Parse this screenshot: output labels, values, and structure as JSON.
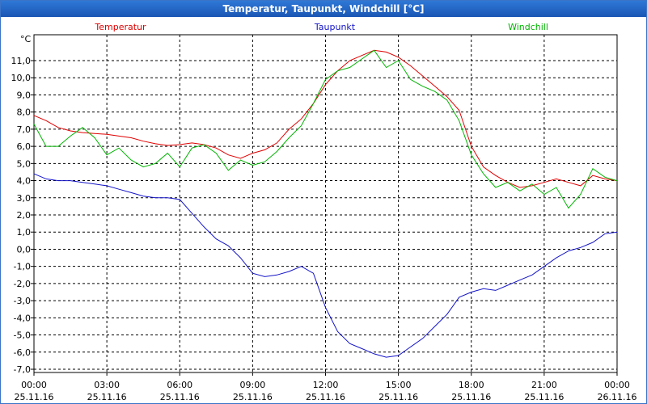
{
  "window": {
    "title": "Temperatur, Taupunkt, Windchill [°C]"
  },
  "chart_data": {
    "type": "line",
    "title": "Temperatur, Taupunkt, Windchill [°C]",
    "ylabel": "°C",
    "xlabel": "",
    "ylim": [
      -7,
      12
    ],
    "xlim": [
      0,
      24
    ],
    "grid": true,
    "y_ticks": [
      "11,0",
      "10,0",
      "9,0",
      "8,0",
      "7,0",
      "6,0",
      "5,0",
      "4,0",
      "3,0",
      "2,0",
      "1,0",
      "0,0",
      "-1,0",
      "-2,0",
      "-3,0",
      "-4,0",
      "-5,0",
      "-6,0",
      "-7,0"
    ],
    "y_tick_values": [
      11,
      10,
      9,
      8,
      7,
      6,
      5,
      4,
      3,
      2,
      1,
      0,
      -1,
      -2,
      -3,
      -4,
      -5,
      -6,
      -7
    ],
    "x_ticks": [
      {
        "time": "00:00",
        "date": "25.11.16",
        "hour": 0
      },
      {
        "time": "03:00",
        "date": "25.11.16",
        "hour": 3
      },
      {
        "time": "06:00",
        "date": "25.11.16",
        "hour": 6
      },
      {
        "time": "09:00",
        "date": "25.11.16",
        "hour": 9
      },
      {
        "time": "12:00",
        "date": "25.11.16",
        "hour": 12
      },
      {
        "time": "15:00",
        "date": "25.11.16",
        "hour": 15
      },
      {
        "time": "18:00",
        "date": "25.11.16",
        "hour": 18
      },
      {
        "time": "21:00",
        "date": "25.11.16",
        "hour": 21
      },
      {
        "time": "00:00",
        "date": "26.11.16",
        "hour": 24
      }
    ],
    "legend_placement": "top",
    "series": [
      {
        "name": "Temperatur",
        "color": "#e00000",
        "x": [
          0,
          0.5,
          1,
          1.5,
          2,
          2.5,
          3,
          3.5,
          4,
          4.5,
          5,
          5.5,
          6,
          6.5,
          7,
          7.5,
          8,
          8.5,
          9,
          9.5,
          10,
          10.5,
          11,
          11.5,
          12,
          12.5,
          13,
          13.5,
          14,
          14.5,
          15,
          15.5,
          16,
          16.5,
          17,
          17.5,
          18,
          18.5,
          19,
          19.5,
          20,
          20.5,
          21,
          21.5,
          22,
          22.5,
          23,
          23.5,
          24
        ],
        "values": [
          7.8,
          7.5,
          7.1,
          6.9,
          6.8,
          6.75,
          6.7,
          6.6,
          6.5,
          6.3,
          6.15,
          6.05,
          6.1,
          6.2,
          6.1,
          5.9,
          5.5,
          5.3,
          5.6,
          5.8,
          6.2,
          7.0,
          7.6,
          8.5,
          9.6,
          10.4,
          11.0,
          11.3,
          11.6,
          11.5,
          11.2,
          10.7,
          10.1,
          9.5,
          8.9,
          8.1,
          6.0,
          4.8,
          4.3,
          3.9,
          3.6,
          3.7,
          3.9,
          4.1,
          3.9,
          3.7,
          4.3,
          4.1,
          4.0
        ]
      },
      {
        "name": "Taupunkt",
        "color": "#1414c8",
        "x": [
          0,
          0.5,
          1,
          1.5,
          2,
          2.5,
          3,
          3.5,
          4,
          4.5,
          5,
          5.5,
          6,
          6.5,
          7,
          7.5,
          8,
          8.5,
          9,
          9.5,
          10,
          10.5,
          11,
          11.5,
          12,
          12.5,
          13,
          13.5,
          14,
          14.5,
          15,
          15.5,
          16,
          16.5,
          17,
          17.5,
          18,
          18.5,
          19,
          19.5,
          20,
          20.5,
          21,
          21.5,
          22,
          22.5,
          23,
          23.5,
          24
        ],
        "values": [
          4.4,
          4.1,
          4.0,
          4.0,
          3.9,
          3.8,
          3.7,
          3.5,
          3.3,
          3.1,
          3.0,
          3.0,
          2.9,
          2.1,
          1.3,
          0.6,
          0.2,
          -0.5,
          -1.4,
          -1.6,
          -1.5,
          -1.3,
          -1.0,
          -1.4,
          -3.4,
          -4.8,
          -5.5,
          -5.8,
          -6.1,
          -6.3,
          -6.2,
          -5.7,
          -5.2,
          -4.5,
          -3.8,
          -2.8,
          -2.5,
          -2.3,
          -2.4,
          -2.1,
          -1.8,
          -1.5,
          -1.0,
          -0.5,
          -0.1,
          0.1,
          0.4,
          0.9,
          1.0
        ]
      },
      {
        "name": "Windchill",
        "color": "#00b400",
        "x": [
          0,
          0.5,
          1,
          1.5,
          2,
          2.5,
          3,
          3.5,
          4,
          4.5,
          5,
          5.5,
          6,
          6.5,
          7,
          7.5,
          8,
          8.5,
          9,
          9.5,
          10,
          10.5,
          11,
          11.5,
          12,
          12.5,
          13,
          13.5,
          14,
          14.5,
          15,
          15.5,
          16,
          16.5,
          17,
          17.5,
          18,
          18.5,
          19,
          19.5,
          20,
          20.5,
          21,
          21.5,
          22,
          22.5,
          23,
          23.5,
          24
        ],
        "values": [
          7.3,
          6.0,
          6.0,
          6.6,
          7.1,
          6.5,
          5.5,
          5.9,
          5.2,
          4.8,
          5.0,
          5.6,
          4.8,
          5.9,
          6.1,
          5.6,
          4.6,
          5.2,
          4.9,
          5.1,
          5.7,
          6.5,
          7.2,
          8.5,
          9.9,
          10.4,
          10.6,
          11.1,
          11.6,
          10.6,
          11.0,
          9.9,
          9.5,
          9.2,
          8.7,
          7.5,
          5.5,
          4.4,
          3.6,
          3.9,
          3.4,
          3.8,
          3.2,
          3.6,
          2.4,
          3.2,
          4.7,
          4.2,
          4.0
        ]
      }
    ]
  }
}
